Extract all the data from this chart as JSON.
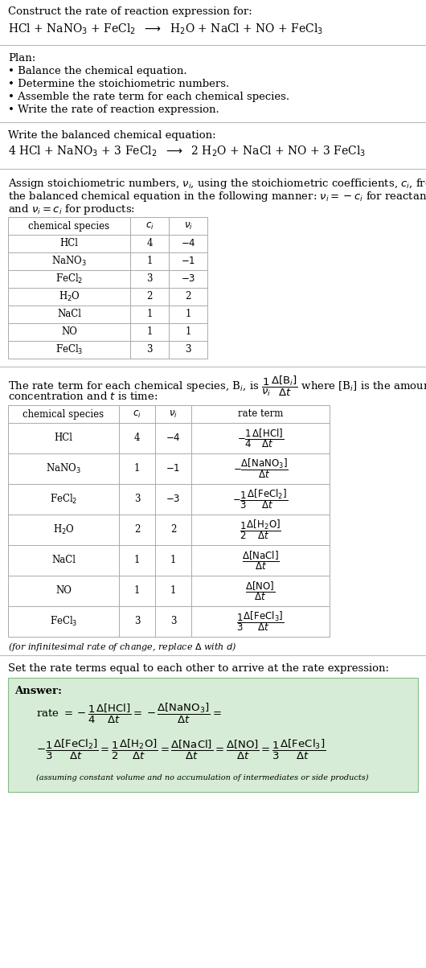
{
  "bg_color": "#ffffff",
  "text_color": "#000000",
  "title_line1": "Construct the rate of reaction expression for:",
  "reaction_unbalanced": "HCl + NaNO$_3$ + FeCl$_2$  $\\longrightarrow$  H$_2$O + NaCl + NO + FeCl$_3$",
  "plan_header": "Plan:",
  "plan_items": [
    "Balance the chemical equation.",
    "Determine the stoichiometric numbers.",
    "Assemble the rate term for each chemical species.",
    "Write the rate of reaction expression."
  ],
  "balanced_header": "Write the balanced chemical equation:",
  "reaction_balanced": "4 HCl + NaNO$_3$ + 3 FeCl$_2$  $\\longrightarrow$  2 H$_2$O + NaCl + NO + 3 FeCl$_3$",
  "assign_text1": "Assign stoichiometric numbers, $\\nu_i$, using the stoichiometric coefficients, $c_i$, from",
  "assign_text2": "the balanced chemical equation in the following manner: $\\nu_i = -c_i$ for reactants",
  "assign_text3": "and $\\nu_i = c_i$ for products:",
  "table1_headers": [
    "chemical species",
    "$c_i$",
    "$\\nu_i$"
  ],
  "table1_rows": [
    [
      "HCl",
      "4",
      "$-4$"
    ],
    [
      "NaNO$_3$",
      "1",
      "$-1$"
    ],
    [
      "FeCl$_2$",
      "3",
      "$-3$"
    ],
    [
      "H$_2$O",
      "2",
      "2"
    ],
    [
      "NaCl",
      "1",
      "1"
    ],
    [
      "NO",
      "1",
      "1"
    ],
    [
      "FeCl$_3$",
      "3",
      "3"
    ]
  ],
  "rate_text1": "The rate term for each chemical species, B$_i$, is $\\dfrac{1}{\\nu_i}\\dfrac{\\Delta[\\mathrm{B}_i]}{\\Delta t}$ where [B$_i$] is the amount",
  "rate_text2": "concentration and $t$ is time:",
  "table2_headers": [
    "chemical species",
    "$c_i$",
    "$\\nu_i$",
    "rate term"
  ],
  "table2_rows": [
    [
      "HCl",
      "4",
      "$-4$",
      "$-\\dfrac{1}{4}\\dfrac{\\Delta[\\mathrm{HCl}]}{\\Delta t}$"
    ],
    [
      "NaNO$_3$",
      "1",
      "$-1$",
      "$-\\dfrac{\\Delta[\\mathrm{NaNO_3}]}{\\Delta t}$"
    ],
    [
      "FeCl$_2$",
      "3",
      "$-3$",
      "$-\\dfrac{1}{3}\\dfrac{\\Delta[\\mathrm{FeCl_2}]}{\\Delta t}$"
    ],
    [
      "H$_2$O",
      "2",
      "2",
      "$\\dfrac{1}{2}\\dfrac{\\Delta[\\mathrm{H_2O}]}{\\Delta t}$"
    ],
    [
      "NaCl",
      "1",
      "1",
      "$\\dfrac{\\Delta[\\mathrm{NaCl}]}{\\Delta t}$"
    ],
    [
      "NO",
      "1",
      "1",
      "$\\dfrac{\\Delta[\\mathrm{NO}]}{\\Delta t}$"
    ],
    [
      "FeCl$_3$",
      "3",
      "3",
      "$\\dfrac{1}{3}\\dfrac{\\Delta[\\mathrm{FeCl_3}]}{\\Delta t}$"
    ]
  ],
  "infinitesimal_note": "(for infinitesimal rate of change, replace $\\Delta$ with $d$)",
  "set_text": "Set the rate terms equal to each other to arrive at the rate expression:",
  "answer_header": "Answer:",
  "answer_box_color": "#d6ecd6",
  "answer_line1": "rate $= -\\dfrac{1}{4}\\dfrac{\\Delta[\\mathrm{HCl}]}{\\Delta t} = -\\dfrac{\\Delta[\\mathrm{NaNO_3}]}{\\Delta t} =$",
  "answer_line2": "$-\\dfrac{1}{3}\\dfrac{\\Delta[\\mathrm{FeCl_2}]}{\\Delta t} = \\dfrac{1}{2}\\dfrac{\\Delta[\\mathrm{H_2O}]}{\\Delta t} = \\dfrac{\\Delta[\\mathrm{NaCl}]}{\\Delta t} = \\dfrac{\\Delta[\\mathrm{NO}]}{\\Delta t} = \\dfrac{1}{3}\\dfrac{\\Delta[\\mathrm{FeCl_3}]}{\\Delta t}$",
  "answer_note": "(assuming constant volume and no accumulation of intermediates or side products)"
}
